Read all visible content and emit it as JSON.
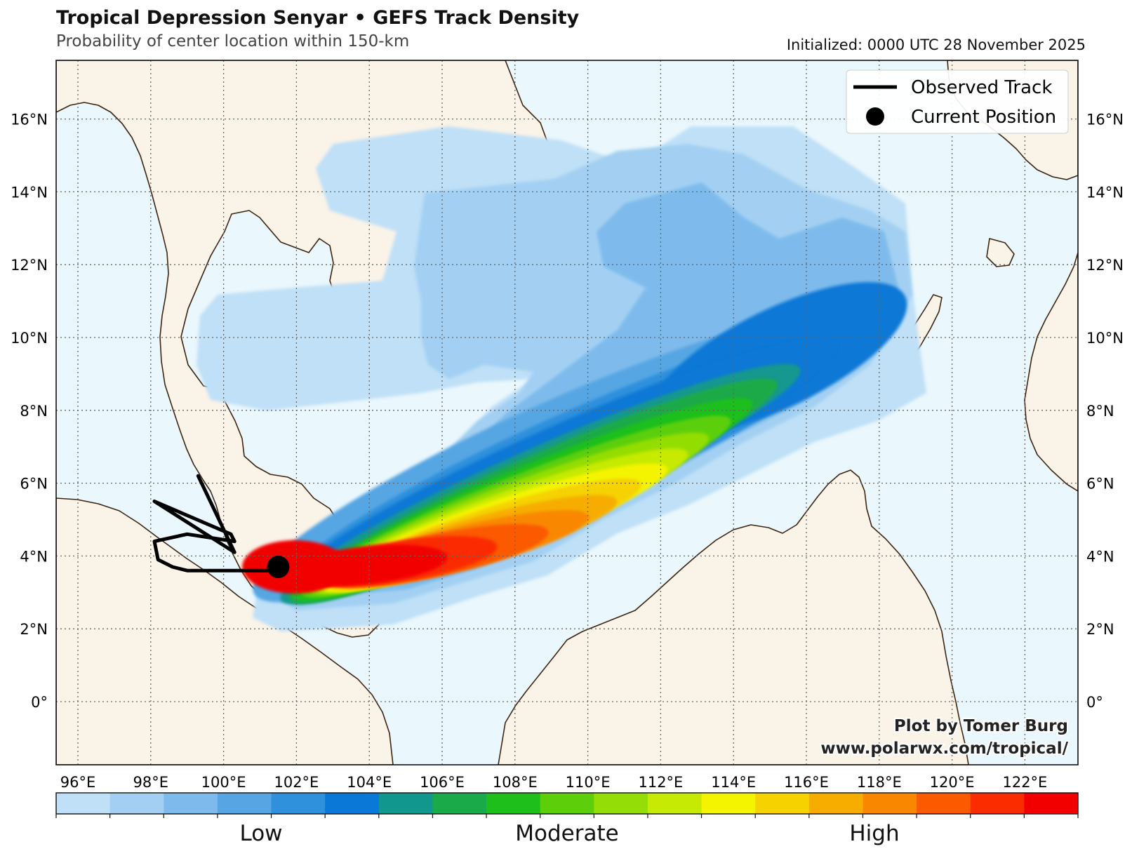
{
  "header": {
    "title": "Tropical Depression Senyar • GEFS Track Density",
    "subtitle": "Probability of center location within 150-km",
    "initialized": "Initialized: 0000 UTC 28 November 2025"
  },
  "legend": {
    "observed_track": "Observed Track",
    "current_position": "Current Position"
  },
  "credit": {
    "line1": "Plot by Tomer Burg",
    "line2": "www.polarwx.com/tropical/"
  },
  "axes": {
    "lat_labels": [
      "16°N",
      "14°N",
      "12°N",
      "10°N",
      "8°N",
      "6°N",
      "4°N",
      "2°N",
      "0°"
    ],
    "lon_labels": [
      "96°E",
      "98°E",
      "100°E",
      "102°E",
      "104°E",
      "106°E",
      "108°E",
      "110°E",
      "112°E",
      "114°E",
      "116°E",
      "118°E",
      "120°E",
      "122°E"
    ]
  },
  "colorbar": {
    "colors": [
      "#bfe0f7",
      "#a3d0f2",
      "#7ebbec",
      "#57a6e3",
      "#2f90dc",
      "#0a78d6",
      "#12978f",
      "#1aaa4a",
      "#1ebf1b",
      "#5ccf0a",
      "#94dd06",
      "#c6ea04",
      "#f4f400",
      "#f5d200",
      "#f7ad00",
      "#f98800",
      "#fb5a00",
      "#fb2c00",
      "#f20000"
    ],
    "labels": [
      "Low",
      "Moderate",
      "High"
    ]
  },
  "colors": {
    "ocean": "#eaf7fc",
    "land": "#faf3e8",
    "coast": "#3d2512",
    "grid": "#666666",
    "track": "#000000"
  },
  "storm": {
    "current_position": {
      "lon": 101.5,
      "lat": 3.7
    },
    "observed_track": [
      {
        "lon": 99.3,
        "lat": 6.2
      },
      {
        "lon": 100.3,
        "lat": 4.1
      },
      {
        "lon": 98.1,
        "lat": 5.5
      },
      {
        "lon": 100.2,
        "lat": 4.6
      },
      {
        "lon": 100.3,
        "lat": 4.4
      },
      {
        "lon": 99.0,
        "lat": 4.6
      },
      {
        "lon": 98.1,
        "lat": 4.4
      },
      {
        "lon": 98.2,
        "lat": 3.9
      },
      {
        "lon": 98.6,
        "lat": 3.7
      },
      {
        "lon": 99.0,
        "lat": 3.6
      },
      {
        "lon": 101.5,
        "lat": 3.6
      }
    ]
  }
}
